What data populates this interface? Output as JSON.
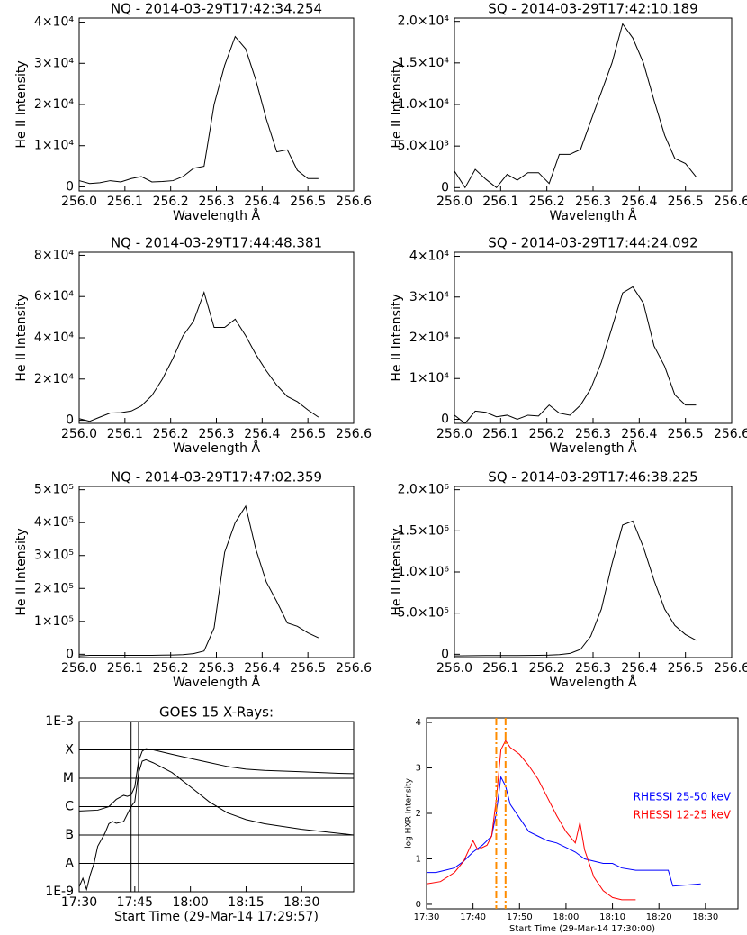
{
  "chart_data": [
    {
      "type": "line",
      "title": "NQ - 2014-03-29T17:42:34.254",
      "x_label": "Wavelength Å",
      "y_label": "He II Intensity",
      "color": "#000000",
      "x": [
        256.0,
        256.023,
        256.045,
        256.068,
        256.091,
        256.114,
        256.136,
        256.159,
        256.182,
        256.205,
        256.227,
        256.25,
        256.273,
        256.295,
        256.318,
        256.341,
        256.364,
        256.386,
        256.409,
        256.432,
        256.455,
        256.477,
        256.5,
        256.523
      ],
      "values": [
        1500,
        800,
        1000,
        1500,
        1200,
        2000,
        2500,
        1200,
        1300,
        1500,
        2500,
        4500,
        5000,
        20000,
        29500,
        36500,
        33500,
        26000,
        16500,
        8500,
        9000,
        4000,
        2000,
        2000
      ],
      "xlim": [
        256.0,
        256.6
      ],
      "xticks": [
        {
          "value": 256,
          "label": "256.0"
        },
        256.1,
        256.2,
        256.3,
        256.4,
        256.5,
        256.6
      ],
      "ylim": [
        -1000,
        41000
      ],
      "yticks": [
        0,
        {
          "value": 10000,
          "label": "1×10⁴"
        },
        {
          "value": 20000,
          "label": "2×10⁴"
        },
        {
          "value": 30000,
          "label": "3×10⁴"
        },
        {
          "value": 40000,
          "label": "4×10⁴"
        }
      ]
    },
    {
      "type": "line",
      "title": "SQ - 2014-03-29T17:42:10.189",
      "x_label": "Wavelength Å",
      "y_label": "He II Intensity",
      "color": "#000000",
      "x": [
        256.0,
        256.023,
        256.045,
        256.068,
        256.091,
        256.114,
        256.136,
        256.159,
        256.182,
        256.205,
        256.227,
        256.25,
        256.273,
        256.295,
        256.318,
        256.341,
        256.364,
        256.386,
        256.409,
        256.432,
        256.455,
        256.477,
        256.5,
        256.523
      ],
      "values": [
        2000,
        0,
        2200,
        1000,
        0,
        1600,
        900,
        1800,
        1800,
        500,
        4000,
        4000,
        4600,
        8000,
        11500,
        15000,
        19700,
        18000,
        15000,
        10500,
        6300,
        3500,
        2900,
        1300
      ],
      "xlim": [
        256.0,
        256.6
      ],
      "xticks": [
        {
          "value": 256,
          "label": "256.0"
        },
        256.1,
        256.2,
        256.3,
        256.4,
        256.5,
        256.6
      ],
      "ylim": [
        -400,
        20400
      ],
      "yticks": [
        0,
        {
          "value": 5000,
          "label": "5.0×10³"
        },
        {
          "value": 10000,
          "label": "1.0×10⁴"
        },
        {
          "value": 15000,
          "label": "1.5×10⁴"
        },
        {
          "value": 20000,
          "label": "2.0×10⁴"
        }
      ]
    },
    {
      "type": "line",
      "title": "NQ - 2014-03-29T17:44:48.381",
      "x_label": "Wavelength Å",
      "y_label": "He II Intensity",
      "color": "#000000",
      "x": [
        256.0,
        256.023,
        256.045,
        256.068,
        256.091,
        256.114,
        256.136,
        256.159,
        256.182,
        256.205,
        256.227,
        256.25,
        256.273,
        256.295,
        256.318,
        256.341,
        256.364,
        256.386,
        256.409,
        256.432,
        256.455,
        256.477,
        256.5,
        256.523
      ],
      "values": [
        800,
        -500,
        1500,
        3500,
        3700,
        4500,
        7000,
        12000,
        20000,
        30000,
        41000,
        48000,
        62000,
        45000,
        45000,
        49000,
        41000,
        32000,
        24000,
        17000,
        11500,
        9000,
        5000,
        1500
      ],
      "xlim": [
        256.0,
        256.6
      ],
      "xticks": [
        {
          "value": 256,
          "label": "256.0"
        },
        256.1,
        256.2,
        256.3,
        256.4,
        256.5,
        256.6
      ],
      "ylim": [
        -1500,
        81500
      ],
      "yticks": [
        0,
        {
          "value": 20000,
          "label": "2×10⁴"
        },
        {
          "value": 40000,
          "label": "4×10⁴"
        },
        {
          "value": 60000,
          "label": "6×10⁴"
        },
        {
          "value": 80000,
          "label": "8×10⁴"
        }
      ]
    },
    {
      "type": "line",
      "title": "SQ - 2014-03-29T17:44:24.092",
      "x_label": "Wavelength Å",
      "y_label": "He II Intensity",
      "color": "#000000",
      "x": [
        256.0,
        256.023,
        256.045,
        256.068,
        256.091,
        256.114,
        256.136,
        256.159,
        256.182,
        256.205,
        256.227,
        256.25,
        256.273,
        256.295,
        256.318,
        256.341,
        256.364,
        256.386,
        256.409,
        256.432,
        256.455,
        256.477,
        256.5,
        256.523
      ],
      "values": [
        1000,
        -1000,
        2000,
        1700,
        600,
        1000,
        0,
        1000,
        800,
        3500,
        1500,
        1000,
        3500,
        7500,
        14000,
        22500,
        31000,
        32500,
        28500,
        18000,
        13000,
        6000,
        3500,
        3500
      ],
      "xlim": [
        256.0,
        256.6
      ],
      "xticks": [
        {
          "value": 256,
          "label": "256.0"
        },
        256.1,
        256.2,
        256.3,
        256.4,
        256.5,
        256.6
      ],
      "ylim": [
        -1000,
        41000
      ],
      "yticks": [
        0,
        {
          "value": 10000,
          "label": "1×10⁴"
        },
        {
          "value": 20000,
          "label": "2×10⁴"
        },
        {
          "value": 30000,
          "label": "3×10⁴"
        },
        {
          "value": 40000,
          "label": "4×10⁴"
        }
      ]
    },
    {
      "type": "line",
      "title": "NQ - 2014-03-29T17:47:02.359",
      "x_label": "Wavelength Å",
      "y_label": "He II Intensity",
      "color": "#000000",
      "x": [
        256.0,
        256.023,
        256.045,
        256.068,
        256.091,
        256.114,
        256.136,
        256.159,
        256.182,
        256.205,
        256.227,
        256.25,
        256.273,
        256.295,
        256.318,
        256.341,
        256.364,
        256.386,
        256.409,
        256.432,
        256.455,
        256.477,
        256.5,
        256.523
      ],
      "values": [
        -5000,
        -3000,
        -3000,
        -3000,
        -3000,
        -3000,
        -3000,
        -3000,
        -2500,
        -2000,
        -1000,
        2000,
        10000,
        80000,
        310000,
        400000,
        450000,
        320000,
        220000,
        160000,
        95000,
        85000,
        65000,
        50000
      ],
      "xlim": [
        256.0,
        256.6
      ],
      "xticks": [
        {
          "value": 256,
          "label": "256.0"
        },
        256.1,
        256.2,
        256.3,
        256.4,
        256.5,
        256.6
      ],
      "ylim": [
        -10000,
        510000
      ],
      "yticks": [
        0,
        {
          "value": 100000,
          "label": "1×10⁵"
        },
        {
          "value": 200000,
          "label": "2×10⁵"
        },
        {
          "value": 300000,
          "label": "3×10⁵"
        },
        {
          "value": 400000,
          "label": "4×10⁵"
        },
        {
          "value": 500000,
          "label": "5×10⁵"
        }
      ]
    },
    {
      "type": "line",
      "title": "SQ - 2014-03-29T17:46:38.225",
      "x_label": "Wavelength Å",
      "y_label": "He II Intensity",
      "color": "#000000",
      "x": [
        256.0,
        256.023,
        256.045,
        256.068,
        256.091,
        256.114,
        256.136,
        256.159,
        256.182,
        256.205,
        256.227,
        256.25,
        256.273,
        256.295,
        256.318,
        256.341,
        256.364,
        256.386,
        256.409,
        256.432,
        256.455,
        256.477,
        256.5,
        256.523
      ],
      "values": [
        -20000,
        -18000,
        -17000,
        -16000,
        -15000,
        -15000,
        -15000,
        -14000,
        -12000,
        -10000,
        -5000,
        10000,
        60000,
        220000,
        550000,
        1100000,
        1570000,
        1620000,
        1300000,
        900000,
        550000,
        350000,
        240000,
        170000
      ],
      "xlim": [
        256.0,
        256.6
      ],
      "xticks": [
        {
          "value": 256,
          "label": "256.0"
        },
        256.1,
        256.2,
        256.3,
        256.4,
        256.5,
        256.6
      ],
      "ylim": [
        -40000,
        2040000
      ],
      "yticks": [
        0,
        {
          "value": 500000,
          "label": "5.0×10⁵"
        },
        {
          "value": 1000000,
          "label": "1.0×10⁶"
        },
        {
          "value": 1500000,
          "label": "1.5×10⁶"
        },
        {
          "value": 2000000,
          "label": "2.0×10⁶"
        }
      ]
    },
    {
      "type": "line",
      "title": "GOES 15 X-Rays:",
      "x_label": "Start Time (29-Mar-14 17:29:57)",
      "log_scale": true,
      "grid": true,
      "xlim": [
        "17:30",
        "18:44"
      ],
      "xticks": [
        "17:30",
        "17:45",
        "18:00",
        "18:15",
        "18:30"
      ],
      "ylim": [
        1e-09,
        0.001
      ],
      "yticks": [
        {
          "value": 1e-09,
          "label": "1E-9"
        },
        {
          "value": 1e-08,
          "label": "A"
        },
        {
          "value": 1e-07,
          "label": "B"
        },
        {
          "value": 1e-06,
          "label": "C"
        },
        {
          "value": 1e-05,
          "label": "M"
        },
        {
          "value": 0.0001,
          "label": "X"
        },
        {
          "value": 0.001,
          "label": "1E-3"
        }
      ],
      "markers_x": [
        "17:44",
        "17:46"
      ],
      "marker_color": "#000000",
      "series": [
        {
          "color": "#000000",
          "x": [
            "17:30",
            "17:35",
            "17:38",
            "17:40",
            "17:42",
            "17:43",
            "17:44",
            "17:45",
            "17:46",
            "17:47",
            "17:48",
            "17:50",
            "17:55",
            "18:00",
            "18:05",
            "18:10",
            "18:15",
            "18:20",
            "18:25",
            "18:30",
            "18:35",
            "18:40",
            "18:44"
          ],
          "values": [
            7e-07,
            7.5e-07,
            1e-06,
            1.8e-06,
            2.5e-06,
            2.3e-06,
            2.6e-06,
            5e-06,
            4e-05,
            9e-05,
            0.00011,
            0.0001,
            7e-05,
            5e-05,
            3.6e-05,
            2.6e-05,
            2.1e-05,
            1.9e-05,
            1.8e-05,
            1.7e-05,
            1.6e-05,
            1.5e-05,
            1.45e-05
          ]
        },
        {
          "color": "#000000",
          "x": [
            "17:30",
            "17:31",
            "17:32",
            "17:33",
            "17:34",
            "17:35",
            "17:37",
            "17:38",
            "17:39",
            "17:40",
            "17:42",
            "17:44",
            "17:45",
            "17:46",
            "17:47",
            "17:48",
            "17:50",
            "17:55",
            "18:00",
            "18:05",
            "18:10",
            "18:15",
            "18:20",
            "18:30",
            "18:44"
          ],
          "values": [
            1.5e-09,
            3e-09,
            1.2e-09,
            4e-09,
            1e-08,
            4e-08,
            1.2e-07,
            2.5e-07,
            3e-07,
            2.6e-07,
            3e-07,
            1e-06,
            1.5e-06,
            1.5e-05,
            4e-05,
            4.5e-05,
            3.5e-05,
            1.6e-05,
            5e-06,
            1.5e-06,
            6e-07,
            3.5e-07,
            2.5e-07,
            1.6e-07,
            1e-07
          ]
        }
      ]
    },
    {
      "type": "line",
      "x_label": "Start Time (29-Mar-14 17:30:00)",
      "y_label": "log HXR Intensity",
      "xlim": [
        "17:30",
        "18:37"
      ],
      "xticks": [
        "17:30",
        "17:40",
        "17:50",
        "18:00",
        "18:10",
        "18:20",
        "18:30"
      ],
      "ylim": [
        -0.1,
        4.1
      ],
      "yticks": [
        0,
        1,
        2,
        3,
        4
      ],
      "markers_x": [
        "17:45",
        "17:47"
      ],
      "marker_color": "#ff8c00",
      "series": [
        {
          "name": "RHESSI 25-50 keV",
          "color": "#0000ff",
          "x": [
            "17:30",
            "17:32",
            "17:34",
            "17:36",
            "17:38",
            "17:40",
            "17:42",
            "17:44",
            "17:45",
            "17:46",
            "17:47",
            "17:48",
            "17:50",
            "17:52",
            "17:54",
            "17:56",
            "17:58",
            "18:00",
            "18:02",
            "18:04",
            "18:06",
            "18:08",
            "18:10",
            "18:12",
            "18:15",
            "18:20",
            "18:22",
            "18:23",
            "18:29"
          ],
          "values": [
            0.7,
            0.7,
            0.75,
            0.8,
            0.95,
            1.15,
            1.3,
            1.5,
            2.0,
            2.8,
            2.6,
            2.2,
            1.9,
            1.6,
            1.5,
            1.4,
            1.35,
            1.25,
            1.15,
            1.0,
            0.95,
            0.9,
            0.9,
            0.8,
            0.75,
            0.75,
            0.75,
            0.4,
            0.45
          ]
        },
        {
          "name": "RHESSI 12-25 keV",
          "color": "#ff0000",
          "x": [
            "17:30",
            "17:33",
            "17:36",
            "17:38",
            "17:40",
            "17:41",
            "17:43",
            "17:44",
            "17:45",
            "17:46",
            "17:47",
            "17:48",
            "17:50",
            "17:52",
            "17:54",
            "17:56",
            "17:58",
            "18:00",
            "18:02",
            "18:03",
            "18:04",
            "18:06",
            "18:08",
            "18:10",
            "18:12",
            "18:15"
          ],
          "values": [
            0.45,
            0.5,
            0.7,
            0.95,
            1.4,
            1.2,
            1.3,
            1.5,
            2.3,
            3.4,
            3.6,
            3.45,
            3.3,
            3.05,
            2.75,
            2.35,
            1.95,
            1.6,
            1.35,
            1.8,
            1.2,
            0.6,
            0.3,
            0.15,
            0.1,
            0.1
          ]
        }
      ]
    }
  ]
}
